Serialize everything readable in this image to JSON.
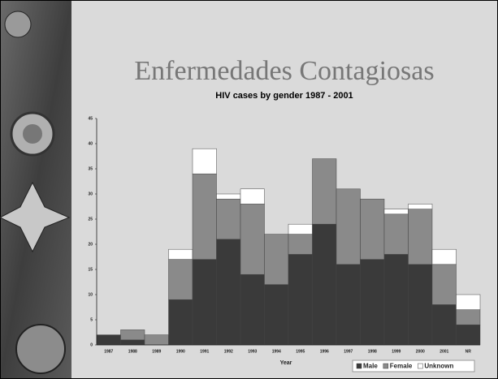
{
  "slide_title": "Enfermedades Contagiosas",
  "chart_data": {
    "type": "stacked_bar",
    "title": "HIV cases by gender 1987 - 2001",
    "x_label": "Year",
    "categories": [
      "1987",
      "1988",
      "1989",
      "1990",
      "1991",
      "1992",
      "1993",
      "1994",
      "1995",
      "1996",
      "1997",
      "1998",
      "1999",
      "2000",
      "2001",
      "NR"
    ],
    "series": [
      {
        "name": "Male",
        "color": "#3a3a3a",
        "values": [
          2,
          1,
          0,
          9,
          17,
          21,
          14,
          12,
          18,
          24,
          16,
          17,
          18,
          16,
          8,
          4
        ]
      },
      {
        "name": "Female",
        "color": "#8a8a8a",
        "values": [
          0,
          2,
          2,
          8,
          17,
          8,
          14,
          10,
          4,
          13,
          15,
          12,
          8,
          11,
          8,
          3
        ]
      },
      {
        "name": "Unknown",
        "color": "#ffffff",
        "values": [
          0,
          0,
          0,
          2,
          5,
          1,
          3,
          0,
          2,
          0,
          0,
          0,
          1,
          1,
          3,
          3
        ]
      }
    ],
    "ylim": [
      0,
      45
    ],
    "yticks": [
      0,
      5,
      10,
      15,
      20,
      25,
      30,
      35,
      40,
      45
    ],
    "legend": "bottom-right"
  }
}
